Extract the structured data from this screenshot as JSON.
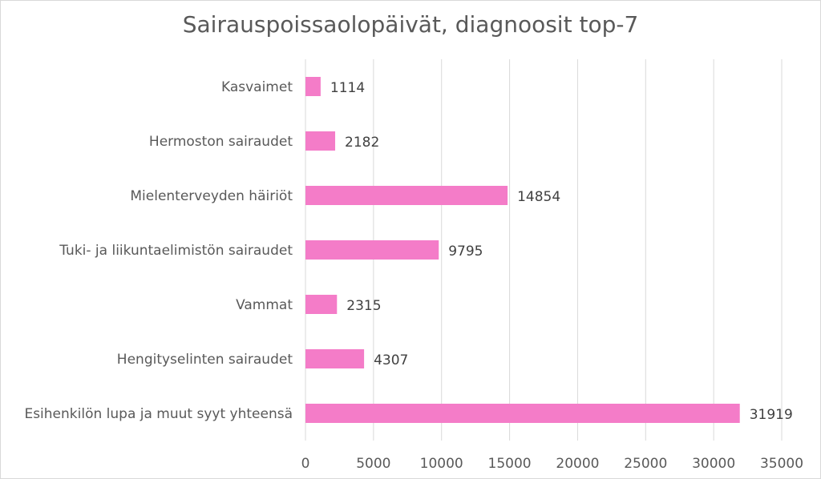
{
  "chart_data": {
    "type": "bar",
    "orientation": "horizontal",
    "title": "Sairauspoissaolopäivät, diagnoosit top-7",
    "xlabel": "",
    "ylabel": "",
    "categories": [
      "Kasvaimet",
      "Hermoston sairaudet",
      "Mielenterveyden häiriöt",
      "Tuki- ja liikuntaelimistön sairaudet",
      "Vammat",
      "Hengityselinten sairaudet",
      "Esihenkilön lupa ja muut syyt yhteensä"
    ],
    "values": [
      1114,
      2182,
      14854,
      9795,
      2315,
      4307,
      31919
    ],
    "value_labels": [
      "1114",
      "2182",
      "14854",
      "9795",
      "2315",
      "4307",
      "31919"
    ],
    "xlim": [
      0,
      35000
    ],
    "xticks": [
      0,
      5000,
      10000,
      15000,
      20000,
      25000,
      30000,
      35000
    ],
    "xtick_labels": [
      "0",
      "5000",
      "10000",
      "15000",
      "20000",
      "25000",
      "30000",
      "35000"
    ],
    "grid": "vertical",
    "legend": "none",
    "bar_color": "#f47cc8",
    "grid_color": "#d9d9d9"
  }
}
